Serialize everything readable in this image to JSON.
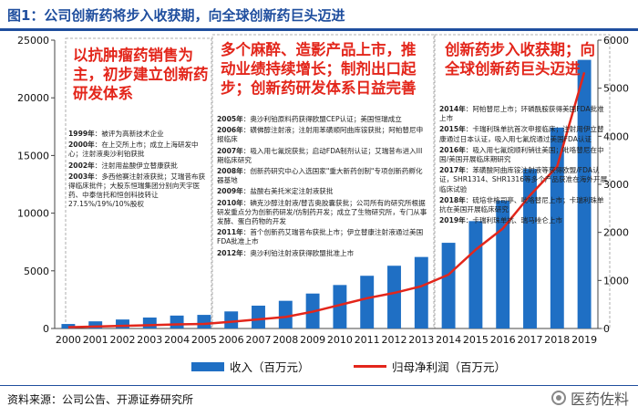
{
  "title": "图1：公司创新药将步入收获期，向全球创新药巨头迈进",
  "chart_data": {
    "type": "bar",
    "categories": [
      "2000",
      "2001",
      "2002",
      "2003",
      "2004",
      "2005",
      "2006",
      "2007",
      "2008",
      "2009",
      "2010",
      "2011",
      "2012",
      "2013",
      "2014",
      "2015",
      "2016",
      "2017",
      "2018",
      "2019"
    ],
    "series": [
      {
        "name": "收入（百万元）",
        "type": "bar",
        "axis": "left",
        "color": "#1f6fc4",
        "values": [
          390,
          620,
          780,
          950,
          1120,
          1180,
          1480,
          1980,
          2400,
          3030,
          3770,
          4570,
          5440,
          6200,
          7430,
          9310,
          11090,
          13830,
          17420,
          23290
        ]
      },
      {
        "name": "归母净利润（百万元）",
        "type": "line",
        "axis": "right",
        "color": "#e3261b",
        "values": [
          25,
          40,
          55,
          70,
          85,
          95,
          140,
          190,
          240,
          350,
          490,
          630,
          740,
          880,
          1120,
          1640,
          2080,
          2770,
          3370,
          5330
        ]
      }
    ],
    "left_axis": {
      "min": 0,
      "max": 25000,
      "ticks": [
        "0",
        "5000",
        "10000",
        "15000",
        "20000",
        "25000"
      ]
    },
    "right_axis": {
      "min": 0,
      "max": 6000,
      "ticks": [
        "0",
        "1000",
        "2000",
        "3000",
        "4000",
        "5000",
        "6000"
      ]
    },
    "legend_position": "bottom",
    "grid": false
  },
  "eras": [
    {
      "text": "以抗肿瘤药销售为主，初步建立创新药研发体系"
    },
    {
      "text": "多个麻醉、造影产品上市，推动业绩持续增长；制剂出口起步；创新药研发体系日益完善"
    },
    {
      "text": "创新药步入收获期；向全球创新药巨头迈进"
    }
  ],
  "notes_left": [
    {
      "year": "1999年",
      "text": "：被评为高新技术企业"
    },
    {
      "year": "2000年",
      "text": "：在上交所上市；成立上海研发中心；注射液奥沙利铂获批"
    },
    {
      "year": "2002年",
      "text": "：注射用盐酸伊立替康获批"
    },
    {
      "year": "2003年",
      "text": "：多西他赛注射液获批；艾瑞昔布获得临床批件；大股东恒瑞集团分别向天宇医药、中泰信托和恒创科技转让27.15%/19%/10%股权"
    }
  ],
  "notes_mid": [
    {
      "year": "2005年",
      "text": "：奥沙利铂原料药获得欧盟CEP认证；美国恒瑞成立"
    },
    {
      "year": "2006年",
      "text": "：磺佛醇注射液；注射用苯磺顺阿曲库铵获批；阿帕替尼申报临床"
    },
    {
      "year": "2007年",
      "text": "：吸入用七氟烷获批；启动FDA制剂认证；艾瑞昔布进入III期临床研究"
    },
    {
      "year": "2008年",
      "text": "：创新药研究中心入选国家\"重大新药创制\"专项创新药孵化器基地"
    },
    {
      "year": "2009年",
      "text": "：盐酸右美托米定注射液获批"
    },
    {
      "year": "2010年",
      "text": "：碘克沙醇注射液/替吉奥胶囊获批；公司所有的研究所根据研发重点分为创新药研发/仿制药开发；成立了生物研究所，专门从事发酵、蛋白药物的开发"
    },
    {
      "year": "2011年",
      "text": "：首个创新药艾瑞昔布获批上市；伊立替康注射液通过美国FDA批准上市"
    },
    {
      "year": "2012年",
      "text": "：奥沙利铂注射液获得欧盟批准上市"
    }
  ],
  "notes_right": [
    {
      "year": "2014年",
      "text": "：阿帕替尼上市；环磷酰胺获得美国FDA批准上市"
    },
    {
      "year": "2015年",
      "text": "：卡瑞利珠单抗首次申报临床；注射用伊立替康通过日本认证，吸入用七氟烷通过美国FDA认证"
    },
    {
      "year": "2016年",
      "text": "：吸入用七氟烷顺利销往美国；吡咯替尼在中国/美国开展临床期研究"
    },
    {
      "year": "2017年",
      "text": "：苯磺酸阿曲库铵注射液等获得欧盟/FDA认证，SHR1314、SHR1316等多个产品获准在海外开展临床试验"
    },
    {
      "year": "2018年",
      "text": "：硫培非格司亭、吡咯替尼上市；卡瑞利珠单抗在美国开展临床研究"
    },
    {
      "year": "2019年",
      "text": "：卡瑞利珠单抗、瑞马唑仑上市"
    }
  ],
  "legend": {
    "bar": "收入（百万元）",
    "line": "归母净利润（百万元）"
  },
  "source": "资料来源：公司公告、开源证券研究所",
  "watermark": "医药佐料",
  "colors": {
    "accent": "#1f4e9e",
    "bar": "#1f6fc4",
    "line": "#e3261b",
    "era_text": "#e3261b"
  }
}
